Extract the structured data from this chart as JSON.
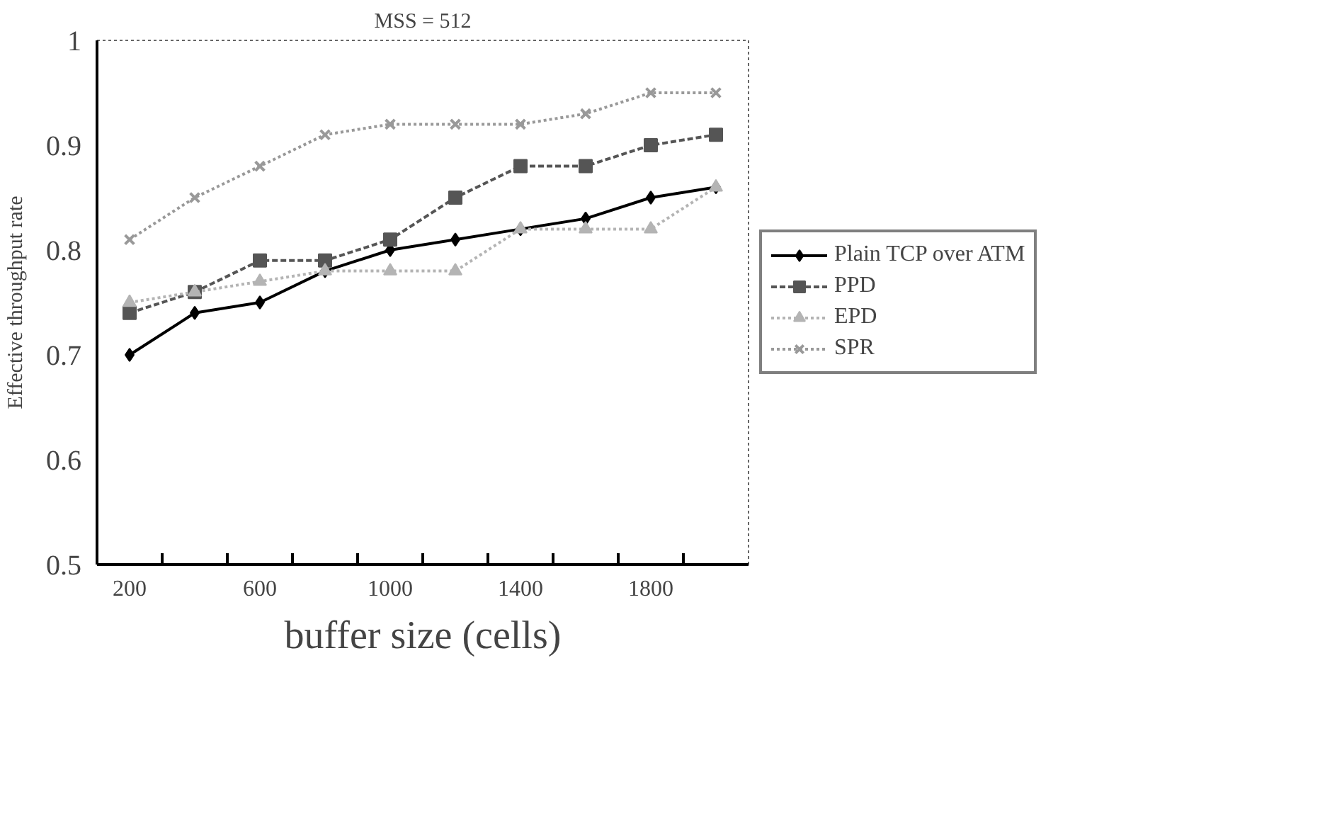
{
  "chart_data": {
    "type": "line",
    "title": "MSS = 512",
    "xlabel": "buffer size (cells)",
    "ylabel": "Effective throughput rate",
    "categories": [
      "200",
      null,
      "600",
      null,
      "1000",
      null,
      "1400",
      null,
      "1800",
      null
    ],
    "ylim": [
      0.5,
      1
    ],
    "yticks": [
      0.5,
      0.6,
      0.7,
      0.8,
      0.9,
      1
    ],
    "grid": false,
    "legend": "right",
    "series": [
      {
        "name": "Plain TCP over ATM",
        "color": "#000000",
        "marker": "diamond",
        "line_style": "solid",
        "values": [
          0.7,
          0.74,
          0.75,
          0.78,
          0.8,
          0.81,
          0.82,
          0.83,
          0.85,
          0.86
        ]
      },
      {
        "name": "PPD",
        "color": "#555555",
        "marker": "square",
        "line_style": "dashed",
        "values": [
          0.74,
          0.76,
          0.79,
          0.79,
          0.81,
          0.85,
          0.88,
          0.88,
          0.9,
          0.91
        ]
      },
      {
        "name": "EPD",
        "color": "#b4b4b4",
        "marker": "triangle",
        "line_style": "dotted",
        "values": [
          0.75,
          0.76,
          0.77,
          0.78,
          0.78,
          0.78,
          0.82,
          0.82,
          0.82,
          0.86
        ]
      },
      {
        "name": "SPR",
        "color": "#999999",
        "marker": "cross",
        "line_style": "dotted",
        "values": [
          0.81,
          0.85,
          0.88,
          0.91,
          0.92,
          0.92,
          0.92,
          0.93,
          0.95,
          0.95
        ]
      }
    ]
  }
}
